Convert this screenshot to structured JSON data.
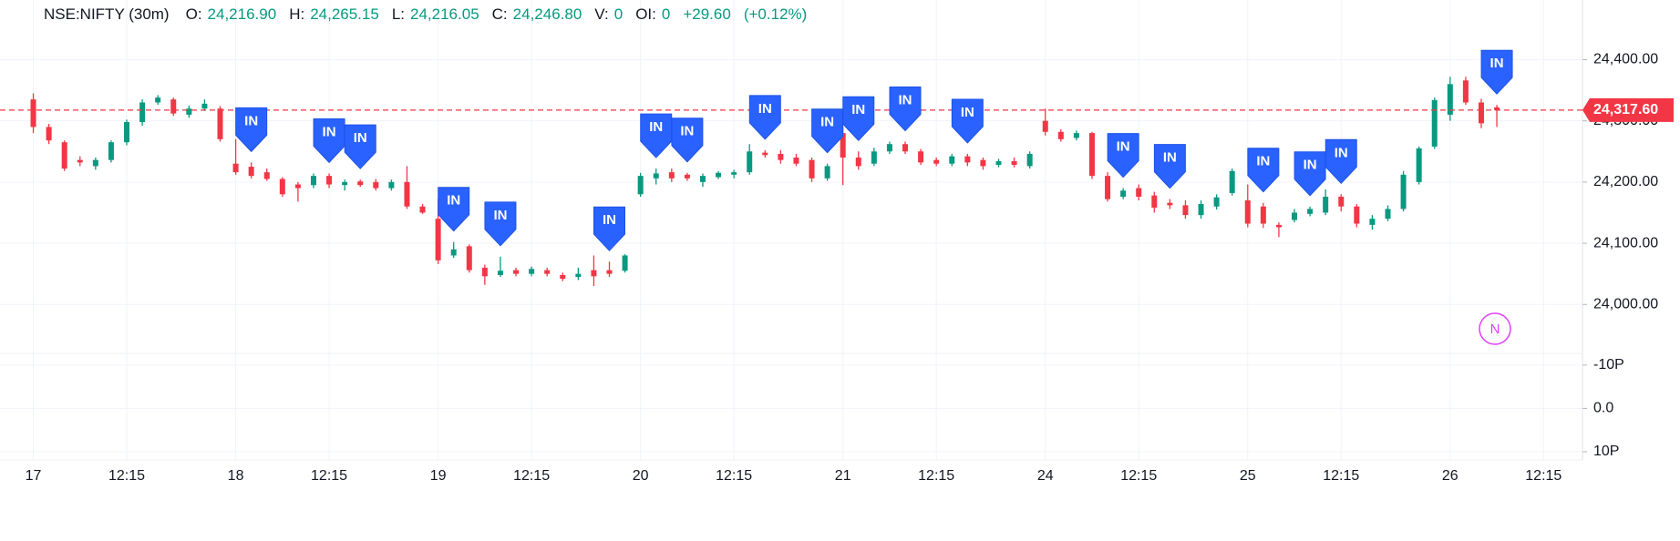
{
  "chart_data": {
    "type": "candlestick",
    "symbol": "NSE:NIFTY (30m)",
    "legend": [
      {
        "key": "O:",
        "value": "24,216.90"
      },
      {
        "key": "H:",
        "value": "24,265.15"
      },
      {
        "key": "L:",
        "value": "24,216.05"
      },
      {
        "key": "C:",
        "value": "24,246.80"
      },
      {
        "key": "V:",
        "value": "0"
      },
      {
        "key": "OI:",
        "value": "0"
      }
    ],
    "change": "+29.60",
    "change_percent": "(+0.12%)",
    "up_color": "#089981",
    "down_color": "#f23645",
    "candles": [
      [
        24335,
        24345,
        24280,
        24290
      ],
      [
        24290,
        24295,
        24262,
        24268
      ],
      [
        24265,
        24268,
        24218,
        24222
      ],
      [
        24236,
        24242,
        24226,
        24232
      ],
      [
        24226,
        24240,
        24220,
        24236
      ],
      [
        24236,
        24268,
        24232,
        24265
      ],
      [
        24265,
        24302,
        24260,
        24298
      ],
      [
        24298,
        24335,
        24292,
        24330
      ],
      [
        24330,
        24342,
        24326,
        24338
      ],
      [
        24335,
        24338,
        24308,
        24312
      ],
      [
        24310,
        24325,
        24305,
        24320
      ],
      [
        24320,
        24335,
        24316,
        24328
      ],
      [
        24320,
        24324,
        24266,
        24270
      ],
      [
        24230,
        24270,
        24212,
        24216
      ],
      [
        24225,
        24232,
        24206,
        24210
      ],
      [
        24216,
        24222,
        24202,
        24205
      ],
      [
        24205,
        24208,
        24176,
        24180
      ],
      [
        24196,
        24200,
        24168,
        24190
      ],
      [
        24195,
        24214,
        24190,
        24210
      ],
      [
        24210,
        24214,
        24190,
        24196
      ],
      [
        24195,
        24204,
        24186,
        24200
      ],
      [
        24201,
        24204,
        24192,
        24195
      ],
      [
        24200,
        24205,
        24186,
        24190
      ],
      [
        24190,
        24204,
        24186,
        24200
      ],
      [
        24200,
        24226,
        24156,
        24160
      ],
      [
        24160,
        24164,
        24148,
        24150
      ],
      [
        24140,
        24172,
        24066,
        24072
      ],
      [
        24080,
        24102,
        24076,
        24090
      ],
      [
        24095,
        24098,
        24052,
        24056
      ],
      [
        24060,
        24065,
        24032,
        24046
      ],
      [
        24048,
        24078,
        24045,
        24055
      ],
      [
        24056,
        24060,
        24046,
        24050
      ],
      [
        24050,
        24062,
        24046,
        24058
      ],
      [
        24056,
        24060,
        24046,
        24050
      ],
      [
        24048,
        24052,
        24038,
        24042
      ],
      [
        24045,
        24060,
        24040,
        24050
      ],
      [
        24056,
        24080,
        24030,
        24046
      ],
      [
        24056,
        24070,
        24045,
        24050
      ],
      [
        24055,
        24082,
        24052,
        24080
      ],
      [
        24180,
        24215,
        24176,
        24210
      ],
      [
        24206,
        24222,
        24196,
        24214
      ],
      [
        24216,
        24222,
        24200,
        24206
      ],
      [
        24212,
        24215,
        24202,
        24206
      ],
      [
        24200,
        24214,
        24192,
        24210
      ],
      [
        24208,
        24218,
        24205,
        24215
      ],
      [
        24212,
        24220,
        24206,
        24216
      ],
      [
        24216,
        24262,
        24212,
        24250
      ],
      [
        24248,
        24252,
        24240,
        24244
      ],
      [
        24246,
        24252,
        24230,
        24236
      ],
      [
        24240,
        24246,
        24226,
        24230
      ],
      [
        24236,
        24240,
        24200,
        24206
      ],
      [
        24206,
        24230,
        24202,
        24226
      ],
      [
        24280,
        24290,
        24195,
        24240
      ],
      [
        24240,
        24250,
        24220,
        24226
      ],
      [
        24230,
        24256,
        24226,
        24250
      ],
      [
        24250,
        24266,
        24246,
        24262
      ],
      [
        24262,
        24266,
        24246,
        24250
      ],
      [
        24250,
        24254,
        24228,
        24232
      ],
      [
        24236,
        24240,
        24226,
        24230
      ],
      [
        24230,
        24246,
        24226,
        24242
      ],
      [
        24242,
        24246,
        24226,
        24232
      ],
      [
        24236,
        24240,
        24220,
        24226
      ],
      [
        24228,
        24238,
        24224,
        24234
      ],
      [
        24234,
        24240,
        24224,
        24228
      ],
      [
        24226,
        24250,
        24222,
        24246
      ],
      [
        24300,
        24320,
        24276,
        24282
      ],
      [
        24282,
        24286,
        24266,
        24270
      ],
      [
        24272,
        24284,
        24268,
        24280
      ],
      [
        24280,
        24282,
        24205,
        24210
      ],
      [
        24210,
        24216,
        24168,
        24172
      ],
      [
        24176,
        24190,
        24172,
        24186
      ],
      [
        24190,
        24196,
        24170,
        24176
      ],
      [
        24178,
        24184,
        24150,
        24158
      ],
      [
        24166,
        24172,
        24156,
        24162
      ],
      [
        24162,
        24170,
        24140,
        24146
      ],
      [
        24146,
        24170,
        24140,
        24164
      ],
      [
        24160,
        24180,
        24155,
        24175
      ],
      [
        24182,
        24222,
        24178,
        24218
      ],
      [
        24170,
        24196,
        24126,
        24132
      ],
      [
        24160,
        24166,
        24125,
        24132
      ],
      [
        24130,
        24134,
        24110,
        24126
      ],
      [
        24138,
        24156,
        24134,
        24150
      ],
      [
        24148,
        24160,
        24144,
        24156
      ],
      [
        24150,
        24188,
        24146,
        24176
      ],
      [
        24176,
        24180,
        24152,
        24160
      ],
      [
        24160,
        24164,
        24126,
        24132
      ],
      [
        24130,
        24146,
        24122,
        24140
      ],
      [
        24140,
        24162,
        24136,
        24156
      ],
      [
        24156,
        24218,
        24152,
        24212
      ],
      [
        24200,
        24258,
        24196,
        24255
      ],
      [
        24258,
        24338,
        24254,
        24334
      ],
      [
        24310,
        24372,
        24300,
        24360
      ],
      [
        24366,
        24372,
        24326,
        24330
      ],
      [
        24330,
        24336,
        24288,
        24296
      ],
      [
        24322,
        24326,
        24290,
        24317.6
      ]
    ],
    "signals": [
      {
        "index": 14,
        "label": "IN"
      },
      {
        "index": 19,
        "label": "IN"
      },
      {
        "index": 21,
        "label": "IN"
      },
      {
        "index": 27,
        "label": "IN"
      },
      {
        "index": 30,
        "label": "IN"
      },
      {
        "index": 37,
        "label": "IN"
      },
      {
        "index": 40,
        "label": "IN"
      },
      {
        "index": 42,
        "label": "IN"
      },
      {
        "index": 47,
        "label": "IN"
      },
      {
        "index": 51,
        "label": "IN"
      },
      {
        "index": 53,
        "label": "IN"
      },
      {
        "index": 56,
        "label": "IN"
      },
      {
        "index": 60,
        "label": "IN"
      },
      {
        "index": 70,
        "label": "IN"
      },
      {
        "index": 73,
        "label": "IN"
      },
      {
        "index": 79,
        "label": "IN"
      },
      {
        "index": 82,
        "label": "IN"
      },
      {
        "index": 84,
        "label": "IN"
      },
      {
        "index": 94,
        "label": "IN"
      }
    ],
    "last_price": 24317.6,
    "last_price_label": "24,317.60",
    "ylim": [
      23920,
      24490
    ],
    "yticks": [
      {
        "value": 24000,
        "label": "24,000.00"
      },
      {
        "value": 24100,
        "label": "24,100.00"
      },
      {
        "value": 24200,
        "label": "24,200.00"
      },
      {
        "value": 24300,
        "label": "24,300.00"
      },
      {
        "value": 24400,
        "label": "24,400.00"
      }
    ],
    "y2lim": [
      -12.7,
      11.9
    ],
    "y2ticks": [
      {
        "value": -10,
        "label": "-10P"
      },
      {
        "value": 0,
        "label": "0.0"
      },
      {
        "value": 10,
        "label": "10P"
      }
    ],
    "xlim": [
      -0.5,
      99.5
    ],
    "xticks": [
      {
        "value": 0,
        "label": "17"
      },
      {
        "value": 6,
        "label": "12:15"
      },
      {
        "value": 13,
        "label": "18"
      },
      {
        "value": 19,
        "label": "12:15"
      },
      {
        "value": 26,
        "label": "19"
      },
      {
        "value": 32,
        "label": "12:15"
      },
      {
        "value": 39,
        "label": "20"
      },
      {
        "value": 45,
        "label": "12:15"
      },
      {
        "value": 52,
        "label": "21"
      },
      {
        "value": 58,
        "label": "12:15"
      },
      {
        "value": 65,
        "label": "24"
      },
      {
        "value": 71,
        "label": "12:15"
      },
      {
        "value": 78,
        "label": "25"
      },
      {
        "value": 84,
        "label": "12:15"
      },
      {
        "value": 91,
        "label": "26"
      },
      {
        "value": 97,
        "label": "12:15"
      }
    ],
    "badge": "N",
    "grid": true
  }
}
